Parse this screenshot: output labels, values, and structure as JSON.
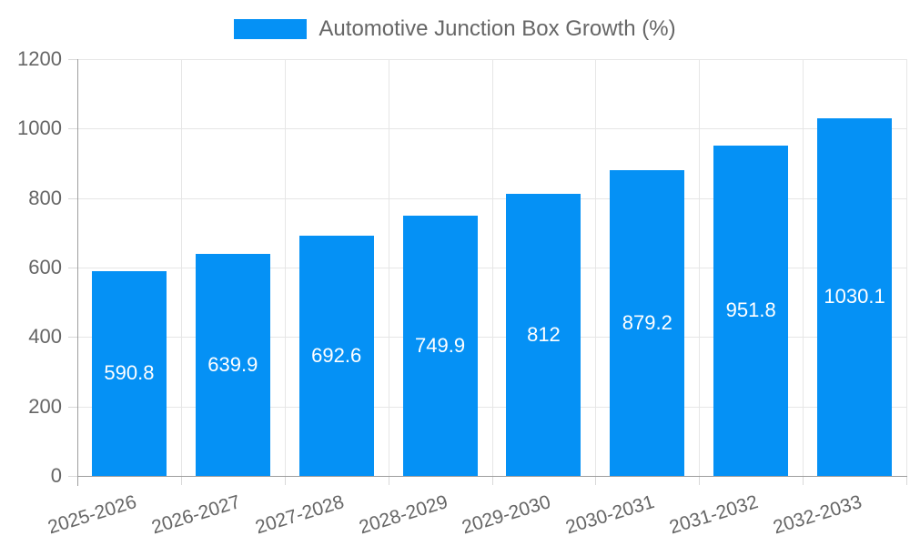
{
  "chart_data": {
    "type": "bar",
    "title": "Automotive Junction Box Growth (%)",
    "categories": [
      "2025-2026",
      "2026-2027",
      "2027-2028",
      "2028-2029",
      "2029-2030",
      "2030-2031",
      "2031-2032",
      "2032-2033"
    ],
    "values": [
      590.8,
      639.9,
      692.6,
      749.9,
      812,
      879.2,
      951.8,
      1030.1
    ],
    "xlabel": "",
    "ylabel": "",
    "ylim": [
      0,
      1200
    ],
    "yticks": [
      0,
      200,
      400,
      600,
      800,
      1000,
      1200
    ],
    "grid": true,
    "legend_position": "top",
    "value_label_position": "inside-center"
  },
  "legend": {
    "label": "Automotive Junction Box Growth (%)"
  },
  "colors": {
    "bar": "#0591f5",
    "grid": "#e6e6e6",
    "tick": "#d9d9d9",
    "axis": "#9e9e9e",
    "text": "#666666",
    "bar_label": "#ffffff",
    "background": "#ffffff"
  }
}
